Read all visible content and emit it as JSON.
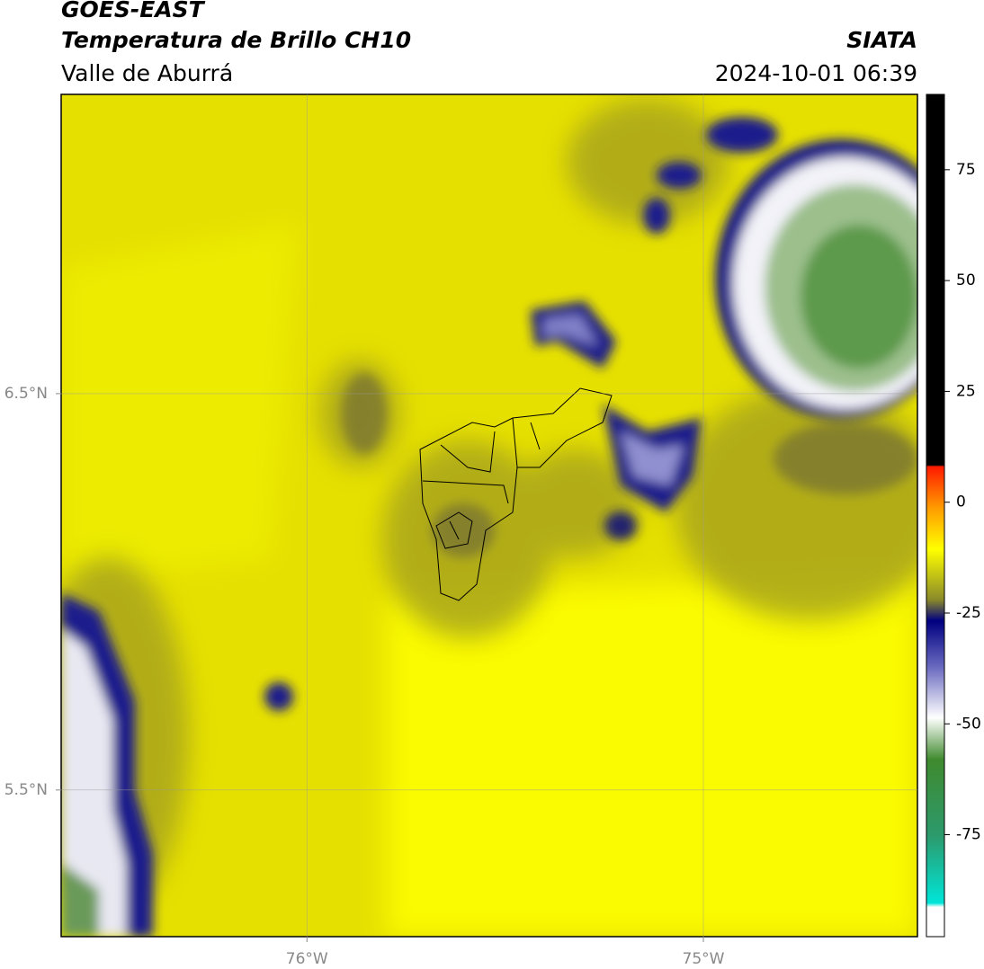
{
  "header": {
    "title": "GOES-EAST",
    "subtitle": "Temperatura de Brillo CH10",
    "region": "Valle de Aburrá",
    "source": "SIATA",
    "datetime": "2024-10-01 06:39"
  },
  "map": {
    "xlim": [
      -76.62,
      -74.46
    ],
    "ylim": [
      5.13,
      7.255
    ],
    "xticks": [
      {
        "value": -76,
        "label": "76°W"
      },
      {
        "value": -75,
        "label": "75°W"
      }
    ],
    "yticks": [
      {
        "value": 6.5,
        "label": "6.5°N"
      },
      {
        "value": 5.5,
        "label": "5.5°N"
      }
    ]
  },
  "colorbar": {
    "lim": [
      -98,
      92
    ],
    "ticks": [
      75,
      50,
      25,
      0,
      -25,
      -50,
      -75
    ]
  }
}
